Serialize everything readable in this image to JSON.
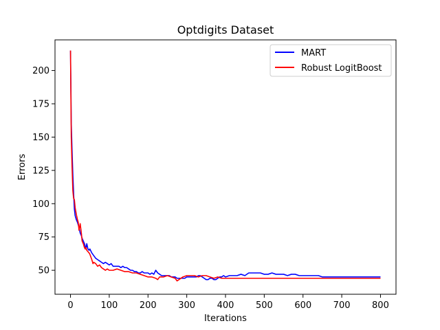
{
  "chart_data": {
    "type": "line",
    "title": "Optdigits Dataset",
    "xlabel": "Iterations",
    "ylabel": "Errors",
    "xlim": [
      -40,
      840
    ],
    "ylim": [
      32,
      223
    ],
    "xticks": [
      0,
      100,
      200,
      300,
      400,
      500,
      600,
      700,
      800
    ],
    "yticks": [
      50,
      75,
      100,
      125,
      150,
      175,
      200
    ],
    "grid": false,
    "legend_position": "top-right",
    "series": [
      {
        "name": "MART",
        "color": "#0000ff",
        "points": [
          [
            0,
            215
          ],
          [
            2,
            160
          ],
          [
            4,
            140
          ],
          [
            6,
            122
          ],
          [
            8,
            108
          ],
          [
            10,
            96
          ],
          [
            12,
            91
          ],
          [
            15,
            88
          ],
          [
            18,
            86
          ],
          [
            20,
            84
          ],
          [
            22,
            82
          ],
          [
            25,
            78
          ],
          [
            28,
            76
          ],
          [
            30,
            74
          ],
          [
            33,
            72
          ],
          [
            36,
            70
          ],
          [
            38,
            68
          ],
          [
            40,
            66
          ],
          [
            42,
            70
          ],
          [
            45,
            66
          ],
          [
            48,
            65
          ],
          [
            50,
            66
          ],
          [
            55,
            63
          ],
          [
            60,
            61
          ],
          [
            65,
            59
          ],
          [
            70,
            58
          ],
          [
            75,
            57
          ],
          [
            80,
            56
          ],
          [
            85,
            55
          ],
          [
            90,
            56
          ],
          [
            95,
            55
          ],
          [
            100,
            54
          ],
          [
            105,
            55
          ],
          [
            110,
            53
          ],
          [
            115,
            53
          ],
          [
            120,
            53
          ],
          [
            125,
            53
          ],
          [
            130,
            52
          ],
          [
            135,
            53
          ],
          [
            140,
            52
          ],
          [
            145,
            52
          ],
          [
            150,
            51
          ],
          [
            155,
            50
          ],
          [
            160,
            50
          ],
          [
            165,
            49
          ],
          [
            170,
            49
          ],
          [
            175,
            48
          ],
          [
            180,
            48
          ],
          [
            185,
            49
          ],
          [
            190,
            48
          ],
          [
            195,
            48
          ],
          [
            200,
            48
          ],
          [
            205,
            47
          ],
          [
            210,
            48
          ],
          [
            215,
            47
          ],
          [
            220,
            50
          ],
          [
            225,
            48
          ],
          [
            230,
            47
          ],
          [
            235,
            46
          ],
          [
            240,
            46
          ],
          [
            245,
            46
          ],
          [
            250,
            46
          ],
          [
            255,
            46
          ],
          [
            260,
            45
          ],
          [
            265,
            45
          ],
          [
            270,
            45
          ],
          [
            275,
            44
          ],
          [
            280,
            44
          ],
          [
            285,
            44
          ],
          [
            290,
            44
          ],
          [
            295,
            44
          ],
          [
            300,
            45
          ],
          [
            305,
            45
          ],
          [
            310,
            45
          ],
          [
            315,
            45
          ],
          [
            320,
            45
          ],
          [
            325,
            45
          ],
          [
            330,
            46
          ],
          [
            335,
            46
          ],
          [
            340,
            45
          ],
          [
            345,
            44
          ],
          [
            350,
            43
          ],
          [
            355,
            43
          ],
          [
            360,
            44
          ],
          [
            365,
            44
          ],
          [
            370,
            43
          ],
          [
            375,
            43
          ],
          [
            380,
            44
          ],
          [
            385,
            45
          ],
          [
            390,
            45
          ],
          [
            395,
            46
          ],
          [
            400,
            45
          ],
          [
            410,
            46
          ],
          [
            420,
            46
          ],
          [
            430,
            46
          ],
          [
            440,
            47
          ],
          [
            450,
            46
          ],
          [
            460,
            48
          ],
          [
            470,
            48
          ],
          [
            480,
            48
          ],
          [
            490,
            48
          ],
          [
            500,
            47
          ],
          [
            510,
            47
          ],
          [
            520,
            48
          ],
          [
            530,
            47
          ],
          [
            540,
            47
          ],
          [
            550,
            47
          ],
          [
            560,
            46
          ],
          [
            570,
            47
          ],
          [
            580,
            47
          ],
          [
            590,
            46
          ],
          [
            600,
            46
          ],
          [
            610,
            46
          ],
          [
            620,
            46
          ],
          [
            630,
            46
          ],
          [
            640,
            46
          ],
          [
            650,
            45
          ],
          [
            700,
            45
          ],
          [
            750,
            45
          ],
          [
            800,
            45
          ]
        ]
      },
      {
        "name": "Robust LogitBoost",
        "color": "#ff0000",
        "points": [
          [
            0,
            215
          ],
          [
            2,
            150
          ],
          [
            4,
            128
          ],
          [
            6,
            110
          ],
          [
            8,
            104
          ],
          [
            10,
            103
          ],
          [
            12,
            97
          ],
          [
            15,
            92
          ],
          [
            18,
            88
          ],
          [
            20,
            86
          ],
          [
            22,
            80
          ],
          [
            25,
            85
          ],
          [
            28,
            78
          ],
          [
            30,
            72
          ],
          [
            33,
            70
          ],
          [
            36,
            67
          ],
          [
            38,
            66
          ],
          [
            40,
            67
          ],
          [
            42,
            65
          ],
          [
            45,
            64
          ],
          [
            48,
            63
          ],
          [
            50,
            62
          ],
          [
            55,
            58
          ],
          [
            58,
            55
          ],
          [
            60,
            56
          ],
          [
            65,
            55
          ],
          [
            70,
            53
          ],
          [
            75,
            54
          ],
          [
            80,
            52
          ],
          [
            85,
            51
          ],
          [
            90,
            50
          ],
          [
            95,
            51
          ],
          [
            100,
            50
          ],
          [
            110,
            50
          ],
          [
            120,
            51
          ],
          [
            130,
            50
          ],
          [
            140,
            49
          ],
          [
            150,
            49
          ],
          [
            160,
            48
          ],
          [
            170,
            48
          ],
          [
            180,
            47
          ],
          [
            190,
            46
          ],
          [
            200,
            45
          ],
          [
            210,
            45
          ],
          [
            220,
            44
          ],
          [
            225,
            43
          ],
          [
            230,
            45
          ],
          [
            240,
            45
          ],
          [
            250,
            46
          ],
          [
            260,
            45
          ],
          [
            270,
            44
          ],
          [
            275,
            42
          ],
          [
            280,
            43
          ],
          [
            290,
            45
          ],
          [
            300,
            46
          ],
          [
            310,
            46
          ],
          [
            320,
            46
          ],
          [
            330,
            45
          ],
          [
            340,
            46
          ],
          [
            350,
            46
          ],
          [
            360,
            45
          ],
          [
            370,
            44
          ],
          [
            380,
            45
          ],
          [
            390,
            44
          ],
          [
            400,
            44
          ],
          [
            500,
            44
          ],
          [
            600,
            44
          ],
          [
            700,
            44
          ],
          [
            800,
            44
          ]
        ]
      }
    ]
  }
}
